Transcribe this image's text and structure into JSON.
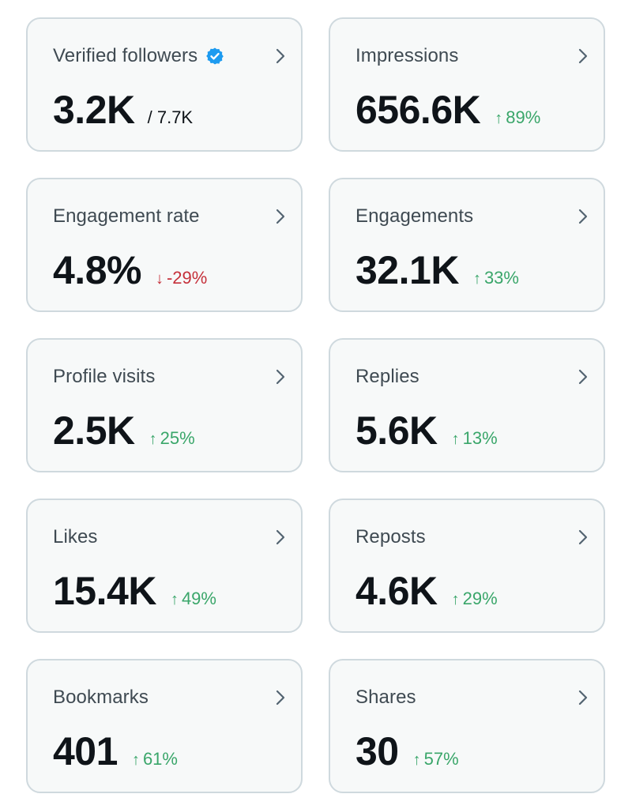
{
  "colors": {
    "card_background": "#f7f9f9",
    "card_border": "#cfd9de",
    "positive": "#3aa66a",
    "negative": "#c5303a",
    "verified_badge": "#1d9bf0"
  },
  "metrics": [
    {
      "title": "Verified followers",
      "value": "3.2K",
      "total": "/ 7.7K",
      "badge_icon": "verified-badge-icon"
    },
    {
      "title": "Impressions",
      "value": "656.6K",
      "delta": "89%",
      "direction": "up"
    },
    {
      "title": "Engagement rate",
      "value": "4.8%",
      "delta": "-29%",
      "direction": "down"
    },
    {
      "title": "Engagements",
      "value": "32.1K",
      "delta": "33%",
      "direction": "up"
    },
    {
      "title": "Profile visits",
      "value": "2.5K",
      "delta": "25%",
      "direction": "up"
    },
    {
      "title": "Replies",
      "value": "5.6K",
      "delta": "13%",
      "direction": "up"
    },
    {
      "title": "Likes",
      "value": "15.4K",
      "delta": "49%",
      "direction": "up"
    },
    {
      "title": "Reposts",
      "value": "4.6K",
      "delta": "29%",
      "direction": "up"
    },
    {
      "title": "Bookmarks",
      "value": "401",
      "delta": "61%",
      "direction": "up"
    },
    {
      "title": "Shares",
      "value": "30",
      "delta": "57%",
      "direction": "up"
    }
  ],
  "icons": {
    "chevron": "chevron-right-icon",
    "up": "arrow-up-icon",
    "down": "arrow-down-icon"
  },
  "arrows": {
    "up": "↑",
    "down": "↓"
  }
}
